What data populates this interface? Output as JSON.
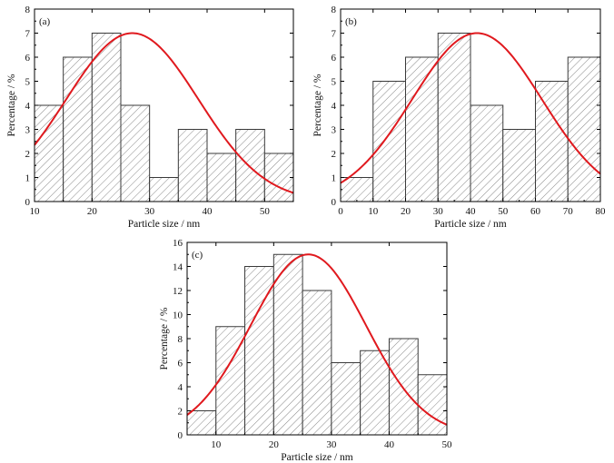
{
  "chart_data": [
    {
      "type": "bar",
      "panel_label": "(a)",
      "xlabel": "Particle size / nm",
      "ylabel": "Percentage / %",
      "xlim": [
        10,
        55
      ],
      "ylim": [
        0,
        8
      ],
      "xticks": [
        10,
        20,
        30,
        40,
        50
      ],
      "yticks": [
        0,
        1,
        2,
        3,
        4,
        5,
        6,
        7,
        8
      ],
      "bins": [
        [
          10,
          15
        ],
        [
          15,
          20
        ],
        [
          20,
          25
        ],
        [
          25,
          30
        ],
        [
          30,
          35
        ],
        [
          35,
          40
        ],
        [
          40,
          45
        ],
        [
          45,
          50
        ],
        [
          50,
          55
        ]
      ],
      "values": [
        4,
        6,
        7,
        4,
        1,
        3,
        2,
        3,
        2
      ],
      "fit_curve": {
        "type": "gaussian",
        "mean": 27,
        "sigma": 11.5,
        "peak": 7
      },
      "bar_pattern": "diagonal hatch",
      "curve_color": "#e0191e",
      "grid": false
    },
    {
      "type": "bar",
      "panel_label": "(b)",
      "xlabel": "Particle size / nm",
      "ylabel": "Percentage / %",
      "xlim": [
        0,
        80
      ],
      "ylim": [
        0,
        8
      ],
      "xticks": [
        0,
        10,
        20,
        30,
        40,
        50,
        60,
        70,
        80
      ],
      "yticks": [
        0,
        1,
        2,
        3,
        4,
        5,
        6,
        7,
        8
      ],
      "bins": [
        [
          0,
          10
        ],
        [
          10,
          20
        ],
        [
          20,
          30
        ],
        [
          30,
          40
        ],
        [
          40,
          50
        ],
        [
          50,
          60
        ],
        [
          60,
          70
        ],
        [
          70,
          80
        ]
      ],
      "values": [
        1,
        5,
        6,
        7,
        4,
        3,
        5,
        6
      ],
      "fit_curve": {
        "type": "gaussian",
        "mean": 42,
        "sigma": 20,
        "peak": 7
      },
      "bar_pattern": "diagonal hatch",
      "curve_color": "#e0191e",
      "grid": false
    },
    {
      "type": "bar",
      "panel_label": "(c)",
      "xlabel": "Particle size / nm",
      "ylabel": "Percentage / %",
      "xlim": [
        5,
        50
      ],
      "ylim": [
        0,
        16
      ],
      "xticks": [
        10,
        20,
        30,
        40,
        50
      ],
      "yticks": [
        0,
        2,
        4,
        6,
        8,
        10,
        12,
        14,
        16
      ],
      "bins": [
        [
          5,
          10
        ],
        [
          10,
          15
        ],
        [
          15,
          20
        ],
        [
          20,
          25
        ],
        [
          25,
          30
        ],
        [
          30,
          35
        ],
        [
          35,
          40
        ],
        [
          40,
          45
        ],
        [
          45,
          50
        ]
      ],
      "values": [
        2,
        9,
        14,
        15,
        12,
        6,
        7,
        8,
        5
      ],
      "fit_curve": {
        "type": "gaussian",
        "mean": 26,
        "sigma": 10,
        "peak": 15
      },
      "bar_pattern": "diagonal hatch",
      "curve_color": "#e0191e",
      "grid": false
    }
  ]
}
